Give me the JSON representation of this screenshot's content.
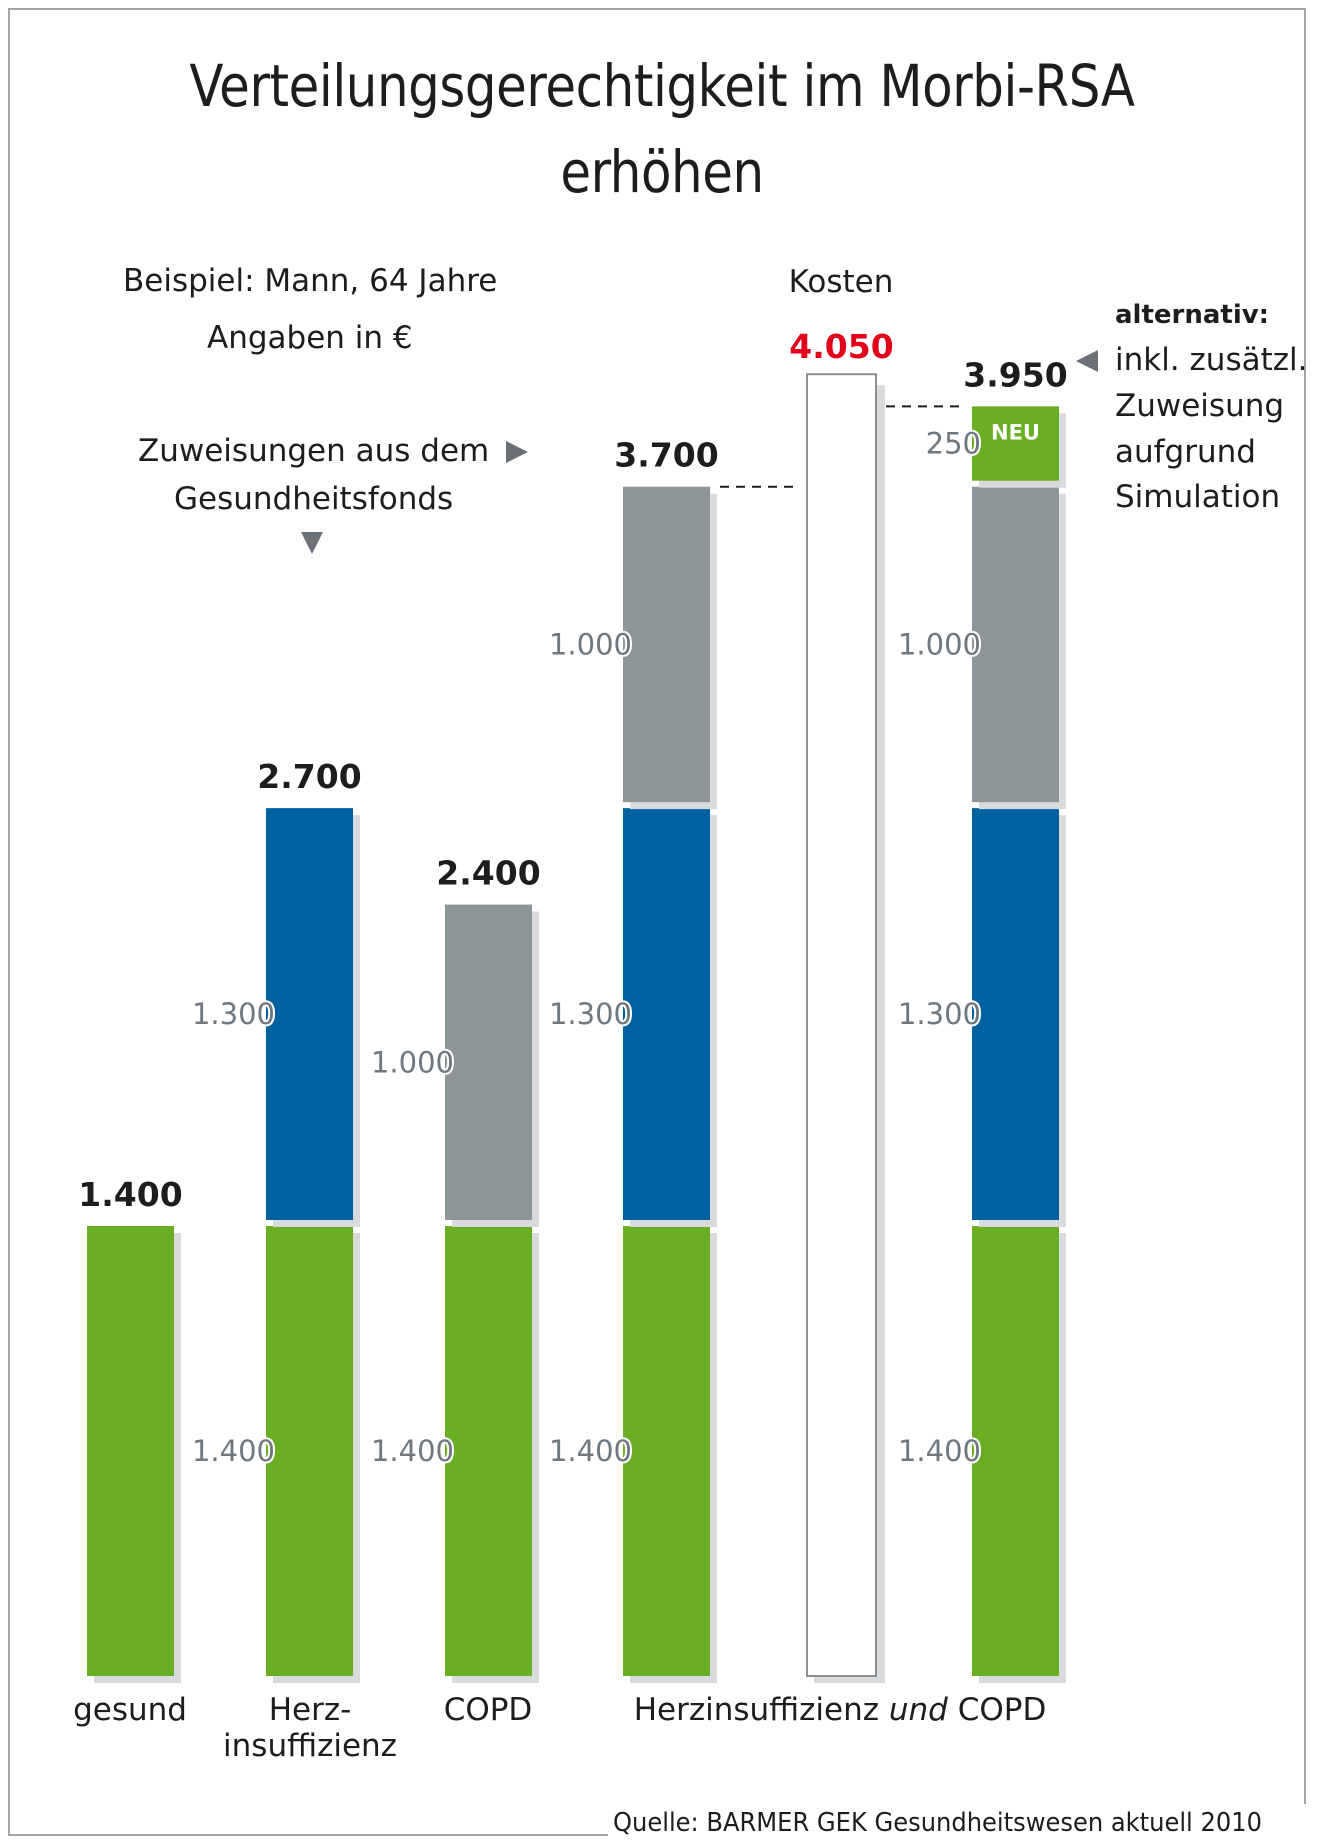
{
  "header": {
    "title_line1": "Verteilungsgerechtigkeit im Morbi-RSA",
    "title_line2": "erhöhen"
  },
  "notes": {
    "example": "Beispiel: Mann, 64 Jahre",
    "unit": "Angaben in €",
    "allocation_line1": "Zuweisungen aus dem",
    "allocation_line2": "Gesundheitsfonds",
    "costs_label": "Kosten",
    "alternative_title": "alternativ:",
    "alternative_lines": [
      "inkl. zusätzl.",
      "Zuweisung",
      "aufgrund",
      "Simulation"
    ],
    "source": "Quelle: BARMER GEK Gesundheitswesen aktuell 2010"
  },
  "icons": {
    "allocation_right": "triangle-right-icon",
    "allocation_down": "triangle-down-icon",
    "alternative_left": "triangle-left-icon"
  },
  "colors": {
    "base": "#6aaf23",
    "heart": "#0061a0",
    "copd": "#8e9598",
    "new": "#6aaf23",
    "shadow": "#d9dadb",
    "cost_total": "#e2001a",
    "cost_bar_border": "#8a8f93"
  },
  "chart_data": {
    "type": "bar",
    "stacked": true,
    "title": "Verteilungsgerechtigkeit im Morbi-RSA erhöhen",
    "subtitle": "Beispiel: Mann, 64 Jahre — Angaben in €",
    "xlabel": "",
    "ylabel": "",
    "ylim": [
      0,
      4100
    ],
    "grid": false,
    "categories": [
      "gesund",
      "Herz-insuffizienz",
      "COPD",
      "Herzinsuffizienz und COPD",
      "Kosten",
      "alternativ"
    ],
    "category_labels": [
      {
        "lines": [
          "gesund"
        ]
      },
      {
        "lines": [
          "Herz-",
          "insuffizienz"
        ]
      },
      {
        "lines": [
          "COPD"
        ]
      },
      {
        "lines": [
          "Herzinsuffizienz ",
          "und",
          " COPD"
        ],
        "spans_bars": [
          3,
          4,
          5
        ],
        "italic_part": 1
      }
    ],
    "bars": [
      {
        "name": "gesund",
        "total": 1400,
        "total_label": "1.400",
        "segments": [
          {
            "kind": "base",
            "value": 1400,
            "label": "",
            "color_key": "base"
          }
        ]
      },
      {
        "name": "Herzinsuffizienz",
        "total": 2700,
        "total_label": "2.700",
        "segments": [
          {
            "kind": "base",
            "value": 1400,
            "label": "1.400",
            "color_key": "base"
          },
          {
            "kind": "heart",
            "value": 1300,
            "label": "1.300",
            "color_key": "heart"
          }
        ]
      },
      {
        "name": "COPD",
        "total": 2400,
        "total_label": "2.400",
        "segments": [
          {
            "kind": "base",
            "value": 1400,
            "label": "1.400",
            "color_key": "base"
          },
          {
            "kind": "copd",
            "value": 1000,
            "label": "1.000",
            "color_key": "copd"
          }
        ]
      },
      {
        "name": "Herzinsuffizienz und COPD",
        "total": 3700,
        "total_label": "3.700",
        "segments": [
          {
            "kind": "base",
            "value": 1400,
            "label": "1.400",
            "color_key": "base"
          },
          {
            "kind": "heart",
            "value": 1300,
            "label": "1.300",
            "color_key": "heart"
          },
          {
            "kind": "copd",
            "value": 1000,
            "label": "1.000",
            "color_key": "copd"
          }
        ]
      },
      {
        "name": "Kosten",
        "total": 4050,
        "total_label": "4.050",
        "outline": true,
        "segments": [
          {
            "kind": "cost",
            "value": 4050,
            "label": "",
            "color_key": ""
          }
        ]
      },
      {
        "name": "alternativ",
        "total": 3950,
        "total_label": "3.950",
        "segments": [
          {
            "kind": "base",
            "value": 1400,
            "label": "1.400",
            "color_key": "base"
          },
          {
            "kind": "heart",
            "value": 1300,
            "label": "1.300",
            "color_key": "heart"
          },
          {
            "kind": "copd",
            "value": 1000,
            "label": "1.000",
            "color_key": "copd"
          },
          {
            "kind": "new",
            "value": 250,
            "label": "250",
            "badge": "NEU",
            "color_key": "new"
          }
        ]
      }
    ],
    "connectors": [
      {
        "from_bar": 3,
        "to_bar": 4,
        "value": 3700,
        "style": "dashed"
      },
      {
        "from_bar": 4,
        "to_bar": 5,
        "value": 3950,
        "style": "dashed"
      }
    ]
  }
}
